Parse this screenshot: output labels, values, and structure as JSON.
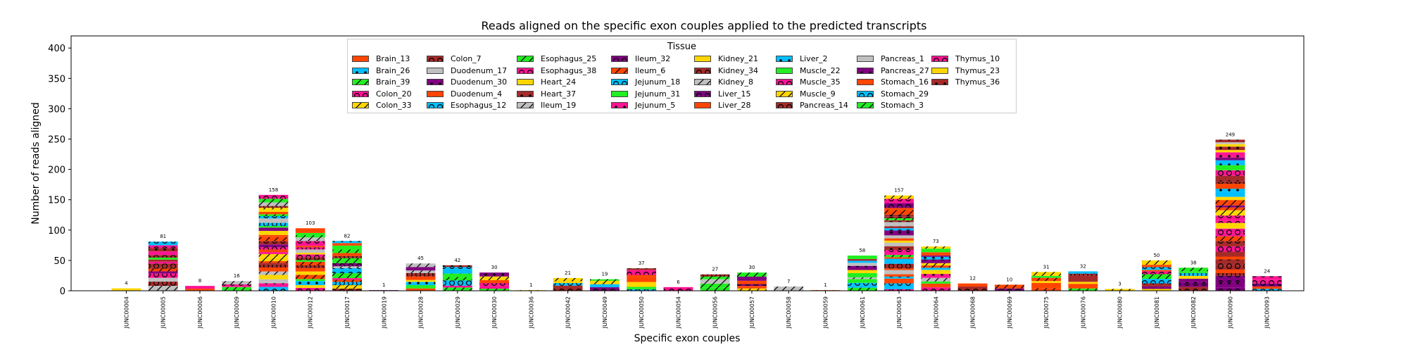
{
  "chart_data": {
    "type": "bar",
    "stacked": true,
    "title": "Reads aligned on the specific exon couples applied to the predicted transcripts",
    "xlabel": "Specific exon couples",
    "ylabel": "Number of reads aligned",
    "ylim": [
      0,
      420
    ],
    "yticks": [
      0,
      50,
      100,
      150,
      200,
      250,
      300,
      350,
      400
    ],
    "grid": false,
    "legend_title": "Tissue",
    "legend_position": "top-center",
    "categories": [
      "JUNC00004",
      "JUNC00005",
      "JUNC00006",
      "JUNC00009",
      "JUNC00010",
      "JUNC00012",
      "JUNC00017",
      "JUNC00019",
      "JUNC00028",
      "JUNC00029",
      "JUNC00030",
      "JUNC00036",
      "JUNC00042",
      "JUNC00049",
      "JUNC00050",
      "JUNC00054",
      "JUNC00056",
      "JUNC00057",
      "JUNC00058",
      "JUNC00059",
      "JUNC00061",
      "JUNC00063",
      "JUNC00064",
      "JUNC00068",
      "JUNC00069",
      "JUNC00075",
      "JUNC00076",
      "JUNC00080",
      "JUNC00081",
      "JUNC00082",
      "JUNC00090",
      "JUNC00093"
    ],
    "totals": [
      4,
      81,
      8,
      16,
      158,
      103,
      82,
      1,
      45,
      42,
      30,
      1,
      21,
      19,
      37,
      6,
      27,
      30,
      7,
      1,
      58,
      157,
      73,
      12,
      10,
      31,
      32,
      3,
      50,
      38,
      249,
      24
    ],
    "series_names": [
      "Brain_13",
      "Brain_26",
      "Brain_39",
      "Colon_20",
      "Colon_33",
      "Colon_7",
      "Duodenum_17",
      "Duodenum_30",
      "Duodenum_4",
      "Esophagus_12",
      "Esophagus_25",
      "Esophagus_38",
      "Heart_24",
      "Heart_37",
      "Ileum_19",
      "Ileum_32",
      "Ileum_6",
      "Jejunum_18",
      "Jejunum_31",
      "Jejunum_5",
      "Kidney_21",
      "Kidney_34",
      "Kidney_8",
      "Liver_15",
      "Liver_28",
      "Liver_2",
      "Muscle_22",
      "Muscle_35",
      "Muscle_9",
      "Pancreas_14",
      "Pancreas_1",
      "Pancreas_27",
      "Stomach_16",
      "Stomach_29",
      "Stomach_3",
      "Thymus_10",
      "Thymus_23",
      "Thymus_36"
    ],
    "series_colors": [
      "#ff4500",
      "#00bfff",
      "#22ee22",
      "#ff1493",
      "#ffd700",
      "#a52a2a",
      "#c0c0c0",
      "#800080",
      "#ff4500",
      "#00bfff",
      "#22ee22",
      "#ff1493",
      "#ffd700",
      "#a52a2a",
      "#c0c0c0",
      "#800080",
      "#ff4500",
      "#00bfff",
      "#22ee22",
      "#ff1493",
      "#ffd700",
      "#a52a2a",
      "#c0c0c0",
      "#800080",
      "#ff4500",
      "#00bfff",
      "#22ee22",
      "#ff1493",
      "#ffd700",
      "#a52a2a",
      "#c0c0c0",
      "#800080",
      "#ff4500",
      "#00bfff",
      "#22ee22",
      "#ff1493",
      "#ffd700",
      "#a52a2a"
    ],
    "series_hatches": [
      "none",
      "dots",
      "slash",
      "rings",
      "slash",
      "rings",
      "none",
      "dots",
      "none",
      "rings",
      "slash",
      "rings",
      "none",
      "dots",
      "slash",
      "rings",
      "slash",
      "rings",
      "none",
      "dots",
      "none",
      "rings",
      "slash",
      "rings",
      "none",
      "dots",
      "none",
      "rings",
      "slash",
      "rings",
      "none",
      "dots",
      "none",
      "rings",
      "slash",
      "rings",
      "none",
      "dots"
    ]
  }
}
